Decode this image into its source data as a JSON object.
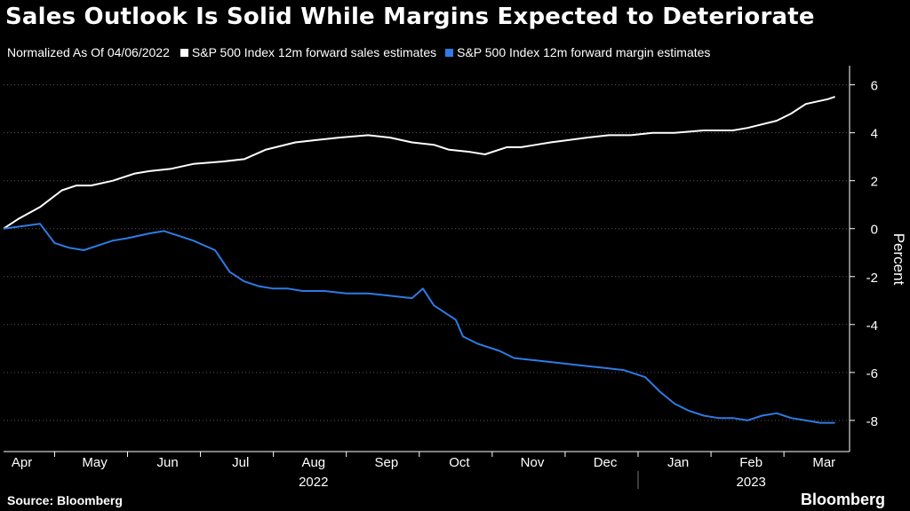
{
  "chart_data": {
    "type": "line",
    "title": "Sales Outlook Is Solid While Margins Expected to Deteriorate",
    "subtitle": "Normalized As Of 04/06/2022",
    "ylabel": "Percent",
    "ylim": [
      -9.3,
      6.8
    ],
    "yticks": [
      6,
      4,
      2,
      0,
      -2,
      -4,
      -6,
      -8
    ],
    "ytick_labels": [
      "6",
      "4",
      "2",
      "0",
      "-2",
      "-4",
      "-6",
      "-8"
    ],
    "xlim": [
      0,
      11.6
    ],
    "month_labels": [
      "Apr",
      "May",
      "Jun",
      "Jul",
      "Aug",
      "Sep",
      "Oct",
      "Nov",
      "Dec",
      "Jan",
      "Feb",
      "Mar"
    ],
    "year_labels": [
      "2022",
      "2023"
    ],
    "grid": "horizontal dotted",
    "legend_position": "top",
    "series": [
      {
        "name": "S&P 500 Index 12m forward sales estimates",
        "color": "#ffffff",
        "x": [
          0,
          0.2,
          0.5,
          0.8,
          1.0,
          1.2,
          1.5,
          1.8,
          2.0,
          2.3,
          2.6,
          3.0,
          3.3,
          3.6,
          4.0,
          4.3,
          4.6,
          5.0,
          5.3,
          5.6,
          5.9,
          6.1,
          6.4,
          6.6,
          6.9,
          7.1,
          7.3,
          7.5,
          8.0,
          8.3,
          8.6,
          8.9,
          9.2,
          9.6,
          10.0,
          10.2,
          10.6,
          10.8,
          11.0,
          11.3,
          11.4
        ],
        "values": [
          0.0,
          0.4,
          0.9,
          1.6,
          1.8,
          1.8,
          2.0,
          2.3,
          2.4,
          2.5,
          2.7,
          2.8,
          2.9,
          3.3,
          3.6,
          3.7,
          3.8,
          3.9,
          3.8,
          3.6,
          3.5,
          3.3,
          3.2,
          3.1,
          3.4,
          3.4,
          3.5,
          3.6,
          3.8,
          3.9,
          3.9,
          4.0,
          4.0,
          4.1,
          4.1,
          4.2,
          4.5,
          4.8,
          5.2,
          5.4,
          5.5
        ]
      },
      {
        "name": "S&P 500 Index 12m forward margin estimates",
        "color": "#2e7be5",
        "x": [
          0,
          0.25,
          0.5,
          0.7,
          0.9,
          1.1,
          1.3,
          1.5,
          1.7,
          2.0,
          2.2,
          2.4,
          2.6,
          2.9,
          3.1,
          3.3,
          3.5,
          3.7,
          3.9,
          4.1,
          4.4,
          4.7,
          5.0,
          5.3,
          5.6,
          5.75,
          5.9,
          6.2,
          6.3,
          6.5,
          6.8,
          7.0,
          7.3,
          7.6,
          7.9,
          8.2,
          8.5,
          8.8,
          9.0,
          9.2,
          9.4,
          9.6,
          9.8,
          10.0,
          10.2,
          10.4,
          10.6,
          10.8,
          11.0,
          11.2,
          11.4
        ],
        "values": [
          0.0,
          0.1,
          0.2,
          -0.6,
          -0.8,
          -0.9,
          -0.7,
          -0.5,
          -0.4,
          -0.2,
          -0.1,
          -0.3,
          -0.5,
          -0.9,
          -1.8,
          -2.2,
          -2.4,
          -2.5,
          -2.5,
          -2.6,
          -2.6,
          -2.7,
          -2.7,
          -2.8,
          -2.9,
          -2.5,
          -3.2,
          -3.8,
          -4.5,
          -4.8,
          -5.1,
          -5.4,
          -5.5,
          -5.6,
          -5.7,
          -5.8,
          -5.9,
          -6.2,
          -6.8,
          -7.3,
          -7.6,
          -7.8,
          -7.9,
          -7.9,
          -8.0,
          -7.8,
          -7.7,
          -7.9,
          -8.0,
          -8.1,
          -8.1
        ]
      }
    ]
  },
  "footer": {
    "source": "Source: Bloomberg",
    "brand": "Bloomberg"
  }
}
